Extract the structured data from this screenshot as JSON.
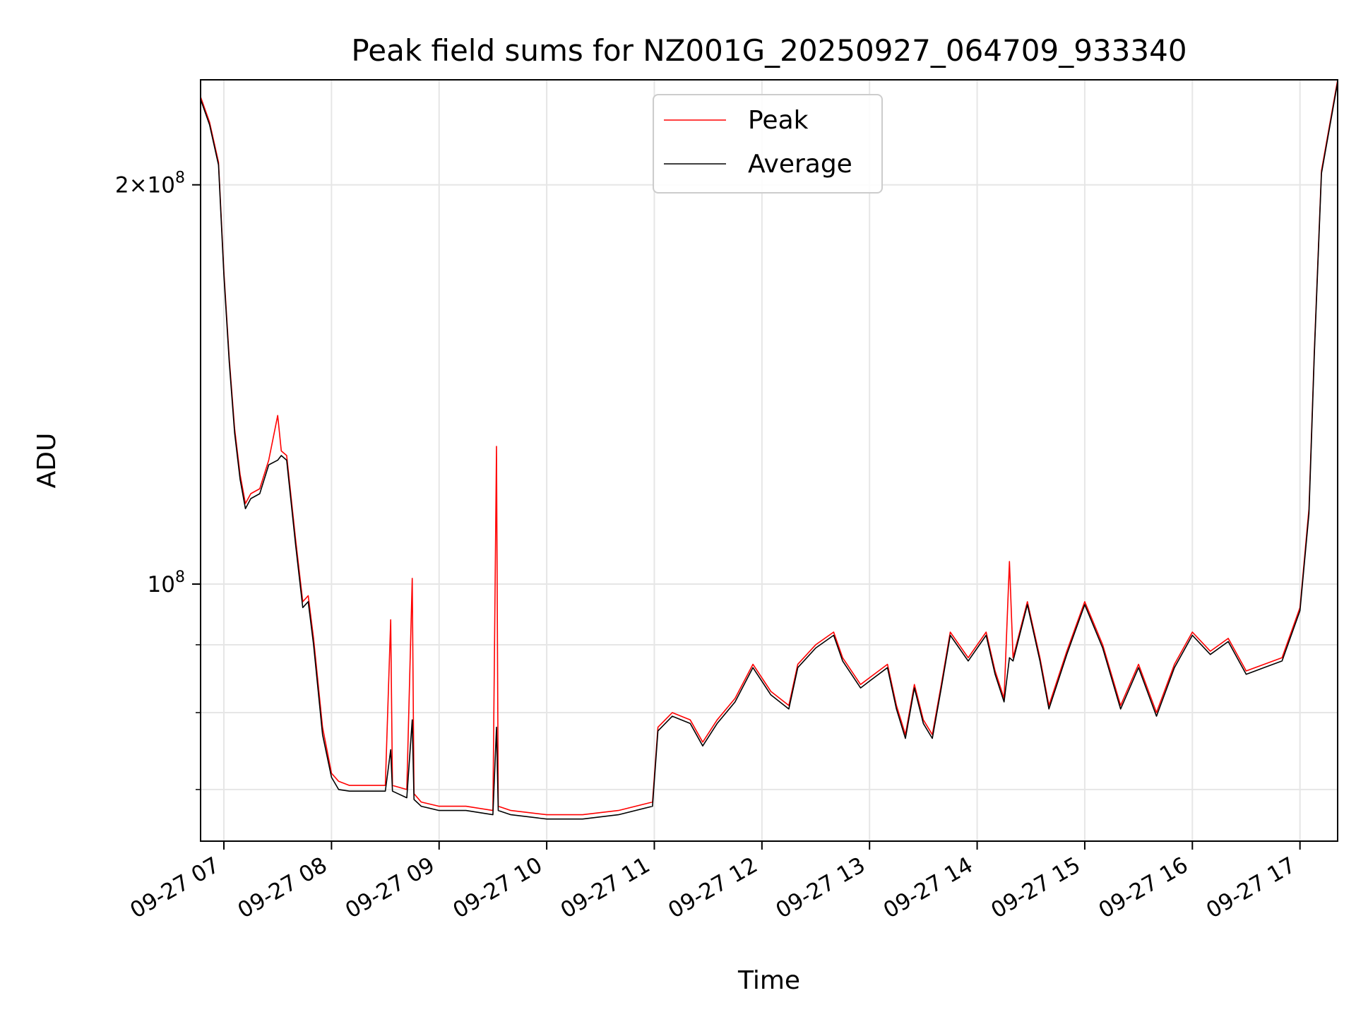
{
  "chart_data": {
    "type": "line",
    "title": "Peak field sums for NZ001G_20250927_064709_933340",
    "xlabel": "Time",
    "ylabel": "ADU",
    "y_scale": "log",
    "grid": true,
    "legend_position": "upper center",
    "xlim": [
      "2025-09-27 06:47",
      "2025-09-27 17:21"
    ],
    "ylim": [
      64000000,
      240000000
    ],
    "x_ticks": [
      "09-27 07",
      "09-27 08",
      "09-27 09",
      "09-27 10",
      "09-27 11",
      "09-27 12",
      "09-27 13",
      "09-27 14",
      "09-27 15",
      "09-27 16",
      "09-27 17"
    ],
    "y_major_ticks": [
      {
        "value": 100000000,
        "label": "10^8"
      },
      {
        "value": 200000000,
        "label": "2×10^8"
      }
    ],
    "y_minor_ticks": [
      70000000,
      80000000,
      90000000
    ],
    "series": [
      {
        "name": "Peak",
        "color": "#ff0000",
        "points": [
          [
            "2025-09-27 06:47",
            233000000
          ],
          [
            "2025-09-27 06:52",
            223000000
          ],
          [
            "2025-09-27 06:57",
            208000000
          ],
          [
            "2025-09-27 07:00",
            172000000
          ],
          [
            "2025-09-27 07:03",
            148000000
          ],
          [
            "2025-09-27 07:06",
            131000000
          ],
          [
            "2025-09-27 07:09",
            121000000
          ],
          [
            "2025-09-27 07:12",
            115000000
          ],
          [
            "2025-09-27 07:15",
            117000000
          ],
          [
            "2025-09-27 07:20",
            118000000
          ],
          [
            "2025-09-27 07:25",
            124000000
          ],
          [
            "2025-09-27 07:30",
            134000000
          ],
          [
            "2025-09-27 07:32",
            126000000
          ],
          [
            "2025-09-27 07:35",
            125000000
          ],
          [
            "2025-09-27 07:40",
            108000000
          ],
          [
            "2025-09-27 07:44",
            97000000
          ],
          [
            "2025-09-27 07:47",
            98000000
          ],
          [
            "2025-09-27 07:50",
            91000000
          ],
          [
            "2025-09-27 07:55",
            78000000
          ],
          [
            "2025-09-27 08:00",
            72000000
          ],
          [
            "2025-09-27 08:04",
            71000000
          ],
          [
            "2025-09-27 08:10",
            70500000
          ],
          [
            "2025-09-27 08:20",
            70500000
          ],
          [
            "2025-09-27 08:30",
            70500000
          ],
          [
            "2025-09-27 08:33",
            94000000
          ],
          [
            "2025-09-27 08:34",
            70500000
          ],
          [
            "2025-09-27 08:42",
            70000000
          ],
          [
            "2025-09-27 08:45",
            101000000
          ],
          [
            "2025-09-27 08:46",
            69500000
          ],
          [
            "2025-09-27 08:50",
            68500000
          ],
          [
            "2025-09-27 09:00",
            68000000
          ],
          [
            "2025-09-27 09:15",
            68000000
          ],
          [
            "2025-09-27 09:30",
            67500000
          ],
          [
            "2025-09-27 09:32",
            127000000
          ],
          [
            "2025-09-27 09:33",
            68000000
          ],
          [
            "2025-09-27 09:40",
            67500000
          ],
          [
            "2025-09-27 10:00",
            67000000
          ],
          [
            "2025-09-27 10:20",
            67000000
          ],
          [
            "2025-09-27 10:40",
            67500000
          ],
          [
            "2025-09-27 10:59",
            68500000
          ],
          [
            "2025-09-27 11:02",
            78000000
          ],
          [
            "2025-09-27 11:10",
            80000000
          ],
          [
            "2025-09-27 11:20",
            79000000
          ],
          [
            "2025-09-27 11:27",
            76000000
          ],
          [
            "2025-09-27 11:35",
            79000000
          ],
          [
            "2025-09-27 11:45",
            82000000
          ],
          [
            "2025-09-27 11:55",
            87000000
          ],
          [
            "2025-09-27 12:05",
            83000000
          ],
          [
            "2025-09-27 12:15",
            81000000
          ],
          [
            "2025-09-27 12:20",
            87000000
          ],
          [
            "2025-09-27 12:30",
            90000000
          ],
          [
            "2025-09-27 12:40",
            92000000
          ],
          [
            "2025-09-27 12:45",
            88000000
          ],
          [
            "2025-09-27 12:55",
            84000000
          ],
          [
            "2025-09-27 13:00",
            85000000
          ],
          [
            "2025-09-27 13:10",
            87000000
          ],
          [
            "2025-09-27 13:15",
            81000000
          ],
          [
            "2025-09-27 13:20",
            77000000
          ],
          [
            "2025-09-27 13:25",
            84000000
          ],
          [
            "2025-09-27 13:30",
            79000000
          ],
          [
            "2025-09-27 13:35",
            77000000
          ],
          [
            "2025-09-27 13:40",
            84000000
          ],
          [
            "2025-09-27 13:45",
            92000000
          ],
          [
            "2025-09-27 13:55",
            88000000
          ],
          [
            "2025-09-27 14:05",
            92000000
          ],
          [
            "2025-09-27 14:10",
            86000000
          ],
          [
            "2025-09-27 14:15",
            82000000
          ],
          [
            "2025-09-27 14:18",
            104000000
          ],
          [
            "2025-09-27 14:20",
            88000000
          ],
          [
            "2025-09-27 14:28",
            97000000
          ],
          [
            "2025-09-27 14:35",
            88000000
          ],
          [
            "2025-09-27 14:40",
            81000000
          ],
          [
            "2025-09-27 14:50",
            89000000
          ],
          [
            "2025-09-27 15:00",
            97000000
          ],
          [
            "2025-09-27 15:10",
            90000000
          ],
          [
            "2025-09-27 15:20",
            81000000
          ],
          [
            "2025-09-27 15:30",
            87000000
          ],
          [
            "2025-09-27 15:40",
            80000000
          ],
          [
            "2025-09-27 15:50",
            87000000
          ],
          [
            "2025-09-27 16:00",
            92000000
          ],
          [
            "2025-09-27 16:10",
            89000000
          ],
          [
            "2025-09-27 16:20",
            91000000
          ],
          [
            "2025-09-27 16:30",
            86000000
          ],
          [
            "2025-09-27 16:40",
            87000000
          ],
          [
            "2025-09-27 16:50",
            88000000
          ],
          [
            "2025-09-27 17:00",
            96000000
          ],
          [
            "2025-09-27 17:05",
            114000000
          ],
          [
            "2025-09-27 17:08",
            150000000
          ],
          [
            "2025-09-27 17:12",
            205000000
          ],
          [
            "2025-09-27 17:21",
            240000000
          ]
        ]
      },
      {
        "name": "Average",
        "color": "#000000",
        "points": [
          [
            "2025-09-27 06:47",
            232000000
          ],
          [
            "2025-09-27 06:52",
            222000000
          ],
          [
            "2025-09-27 06:57",
            207000000
          ],
          [
            "2025-09-27 07:00",
            171000000
          ],
          [
            "2025-09-27 07:03",
            147000000
          ],
          [
            "2025-09-27 07:06",
            130000000
          ],
          [
            "2025-09-27 07:09",
            120000000
          ],
          [
            "2025-09-27 07:12",
            114000000
          ],
          [
            "2025-09-27 07:15",
            116000000
          ],
          [
            "2025-09-27 07:20",
            117000000
          ],
          [
            "2025-09-27 07:25",
            123000000
          ],
          [
            "2025-09-27 07:30",
            124000000
          ],
          [
            "2025-09-27 07:32",
            125000000
          ],
          [
            "2025-09-27 07:35",
            124000000
          ],
          [
            "2025-09-27 07:40",
            107000000
          ],
          [
            "2025-09-27 07:44",
            96000000
          ],
          [
            "2025-09-27 07:47",
            97000000
          ],
          [
            "2025-09-27 07:50",
            90000000
          ],
          [
            "2025-09-27 07:55",
            77000000
          ],
          [
            "2025-09-27 08:00",
            71500000
          ],
          [
            "2025-09-27 08:04",
            70000000
          ],
          [
            "2025-09-27 08:10",
            69800000
          ],
          [
            "2025-09-27 08:20",
            69800000
          ],
          [
            "2025-09-27 08:30",
            69800000
          ],
          [
            "2025-09-27 08:33",
            75000000
          ],
          [
            "2025-09-27 08:34",
            69800000
          ],
          [
            "2025-09-27 08:42",
            69000000
          ],
          [
            "2025-09-27 08:45",
            79000000
          ],
          [
            "2025-09-27 08:46",
            68800000
          ],
          [
            "2025-09-27 08:50",
            68000000
          ],
          [
            "2025-09-27 09:00",
            67500000
          ],
          [
            "2025-09-27 09:15",
            67500000
          ],
          [
            "2025-09-27 09:30",
            67000000
          ],
          [
            "2025-09-27 09:32",
            78000000
          ],
          [
            "2025-09-27 09:33",
            67500000
          ],
          [
            "2025-09-27 09:40",
            67000000
          ],
          [
            "2025-09-27 10:00",
            66500000
          ],
          [
            "2025-09-27 10:20",
            66500000
          ],
          [
            "2025-09-27 10:40",
            67000000
          ],
          [
            "2025-09-27 10:59",
            68000000
          ],
          [
            "2025-09-27 11:02",
            77500000
          ],
          [
            "2025-09-27 11:10",
            79500000
          ],
          [
            "2025-09-27 11:20",
            78500000
          ],
          [
            "2025-09-27 11:27",
            75500000
          ],
          [
            "2025-09-27 11:35",
            78500000
          ],
          [
            "2025-09-27 11:45",
            81500000
          ],
          [
            "2025-09-27 11:55",
            86500000
          ],
          [
            "2025-09-27 12:05",
            82500000
          ],
          [
            "2025-09-27 12:15",
            80500000
          ],
          [
            "2025-09-27 12:20",
            86500000
          ],
          [
            "2025-09-27 12:30",
            89500000
          ],
          [
            "2025-09-27 12:40",
            91500000
          ],
          [
            "2025-09-27 12:45",
            87500000
          ],
          [
            "2025-09-27 12:55",
            83500000
          ],
          [
            "2025-09-27 13:00",
            84500000
          ],
          [
            "2025-09-27 13:10",
            86500000
          ],
          [
            "2025-09-27 13:15",
            80500000
          ],
          [
            "2025-09-27 13:20",
            76500000
          ],
          [
            "2025-09-27 13:25",
            83500000
          ],
          [
            "2025-09-27 13:30",
            78500000
          ],
          [
            "2025-09-27 13:35",
            76500000
          ],
          [
            "2025-09-27 13:40",
            83500000
          ],
          [
            "2025-09-27 13:45",
            91500000
          ],
          [
            "2025-09-27 13:55",
            87500000
          ],
          [
            "2025-09-27 14:05",
            91500000
          ],
          [
            "2025-09-27 14:10",
            85500000
          ],
          [
            "2025-09-27 14:15",
            81500000
          ],
          [
            "2025-09-27 14:18",
            88000000
          ],
          [
            "2025-09-27 14:20",
            87500000
          ],
          [
            "2025-09-27 14:28",
            96500000
          ],
          [
            "2025-09-27 14:35",
            87500000
          ],
          [
            "2025-09-27 14:40",
            80500000
          ],
          [
            "2025-09-27 14:50",
            88500000
          ],
          [
            "2025-09-27 15:00",
            96500000
          ],
          [
            "2025-09-27 15:10",
            89500000
          ],
          [
            "2025-09-27 15:20",
            80500000
          ],
          [
            "2025-09-27 15:30",
            86500000
          ],
          [
            "2025-09-27 15:40",
            79500000
          ],
          [
            "2025-09-27 15:50",
            86500000
          ],
          [
            "2025-09-27 16:00",
            91500000
          ],
          [
            "2025-09-27 16:10",
            88500000
          ],
          [
            "2025-09-27 16:20",
            90500000
          ],
          [
            "2025-09-27 16:30",
            85500000
          ],
          [
            "2025-09-27 16:40",
            86500000
          ],
          [
            "2025-09-27 16:50",
            87500000
          ],
          [
            "2025-09-27 17:00",
            95500000
          ],
          [
            "2025-09-27 17:05",
            113000000
          ],
          [
            "2025-09-27 17:08",
            149000000
          ],
          [
            "2025-09-27 17:12",
            204000000
          ],
          [
            "2025-09-27 17:21",
            239000000
          ]
        ]
      }
    ]
  }
}
